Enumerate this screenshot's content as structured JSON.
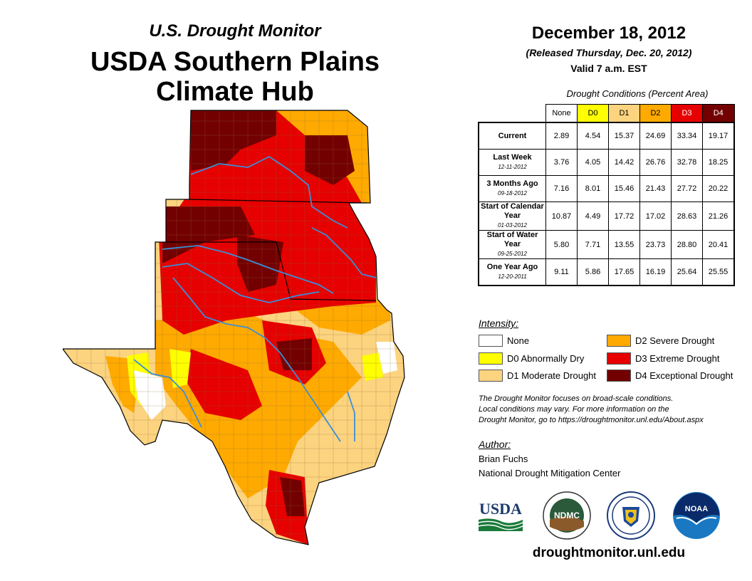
{
  "header": {
    "subtitle": "U.S. Drought Monitor",
    "title_line1": "USDA Southern Plains",
    "title_line2": "Climate Hub"
  },
  "report": {
    "date": "December 18, 2012",
    "released": "(Released Thursday, Dec. 20, 2012)",
    "valid": "Valid 7 a.m. EST"
  },
  "table": {
    "caption": "Drought Conditions (Percent Area)",
    "columns": [
      "None",
      "D0",
      "D1",
      "D2",
      "D3",
      "D4"
    ],
    "column_colors": [
      "#ffffff",
      "#ffff00",
      "#fcd37f",
      "#ffaa00",
      "#e60000",
      "#730000"
    ],
    "rows": [
      {
        "label": "Current",
        "date": "",
        "values": [
          "2.89",
          "4.54",
          "15.37",
          "24.69",
          "33.34",
          "19.17"
        ]
      },
      {
        "label": "Last Week",
        "date": "12-11-2012",
        "values": [
          "3.76",
          "4.05",
          "14.42",
          "26.76",
          "32.78",
          "18.25"
        ]
      },
      {
        "label": "3 Months Ago",
        "date": "09-18-2012",
        "values": [
          "7.16",
          "8.01",
          "15.46",
          "21.43",
          "27.72",
          "20.22"
        ]
      },
      {
        "label": "Start of Calendar Year",
        "date": "01-03-2012",
        "values": [
          "10.87",
          "4.49",
          "17.72",
          "17.02",
          "28.63",
          "21.26"
        ]
      },
      {
        "label": "Start of Water Year",
        "date": "09-25-2012",
        "values": [
          "5.80",
          "7.71",
          "13.55",
          "23.73",
          "28.80",
          "20.41"
        ]
      },
      {
        "label": "One Year Ago",
        "date": "12-20-2011",
        "values": [
          "9.11",
          "5.86",
          "17.65",
          "16.19",
          "25.64",
          "25.55"
        ]
      }
    ]
  },
  "legend": {
    "title": "Intensity:",
    "items": [
      {
        "label": "None",
        "color": "#ffffff"
      },
      {
        "label": "D0 Abnormally Dry",
        "color": "#ffff00"
      },
      {
        "label": "D1 Moderate Drought",
        "color": "#fcd37f"
      },
      {
        "label": "D2 Severe Drought",
        "color": "#ffaa00"
      },
      {
        "label": "D3 Extreme Drought",
        "color": "#e60000"
      },
      {
        "label": "D4 Exceptional Drought",
        "color": "#730000"
      }
    ]
  },
  "note": {
    "line1": "The Drought Monitor focuses on broad-scale conditions.",
    "line2": "Local conditions may vary. For more information on the",
    "line3": "Drought Monitor, go to https://droughtmonitor.unl.edu/About.aspx"
  },
  "author": {
    "label": "Author:",
    "name": "Brian Fuchs",
    "org": "National Drought Mitigation Center"
  },
  "logos": {
    "usda": "USDA",
    "ndmc": "NDMC",
    "noaa": "NOAA"
  },
  "website": "droughtmonitor.unl.edu"
}
